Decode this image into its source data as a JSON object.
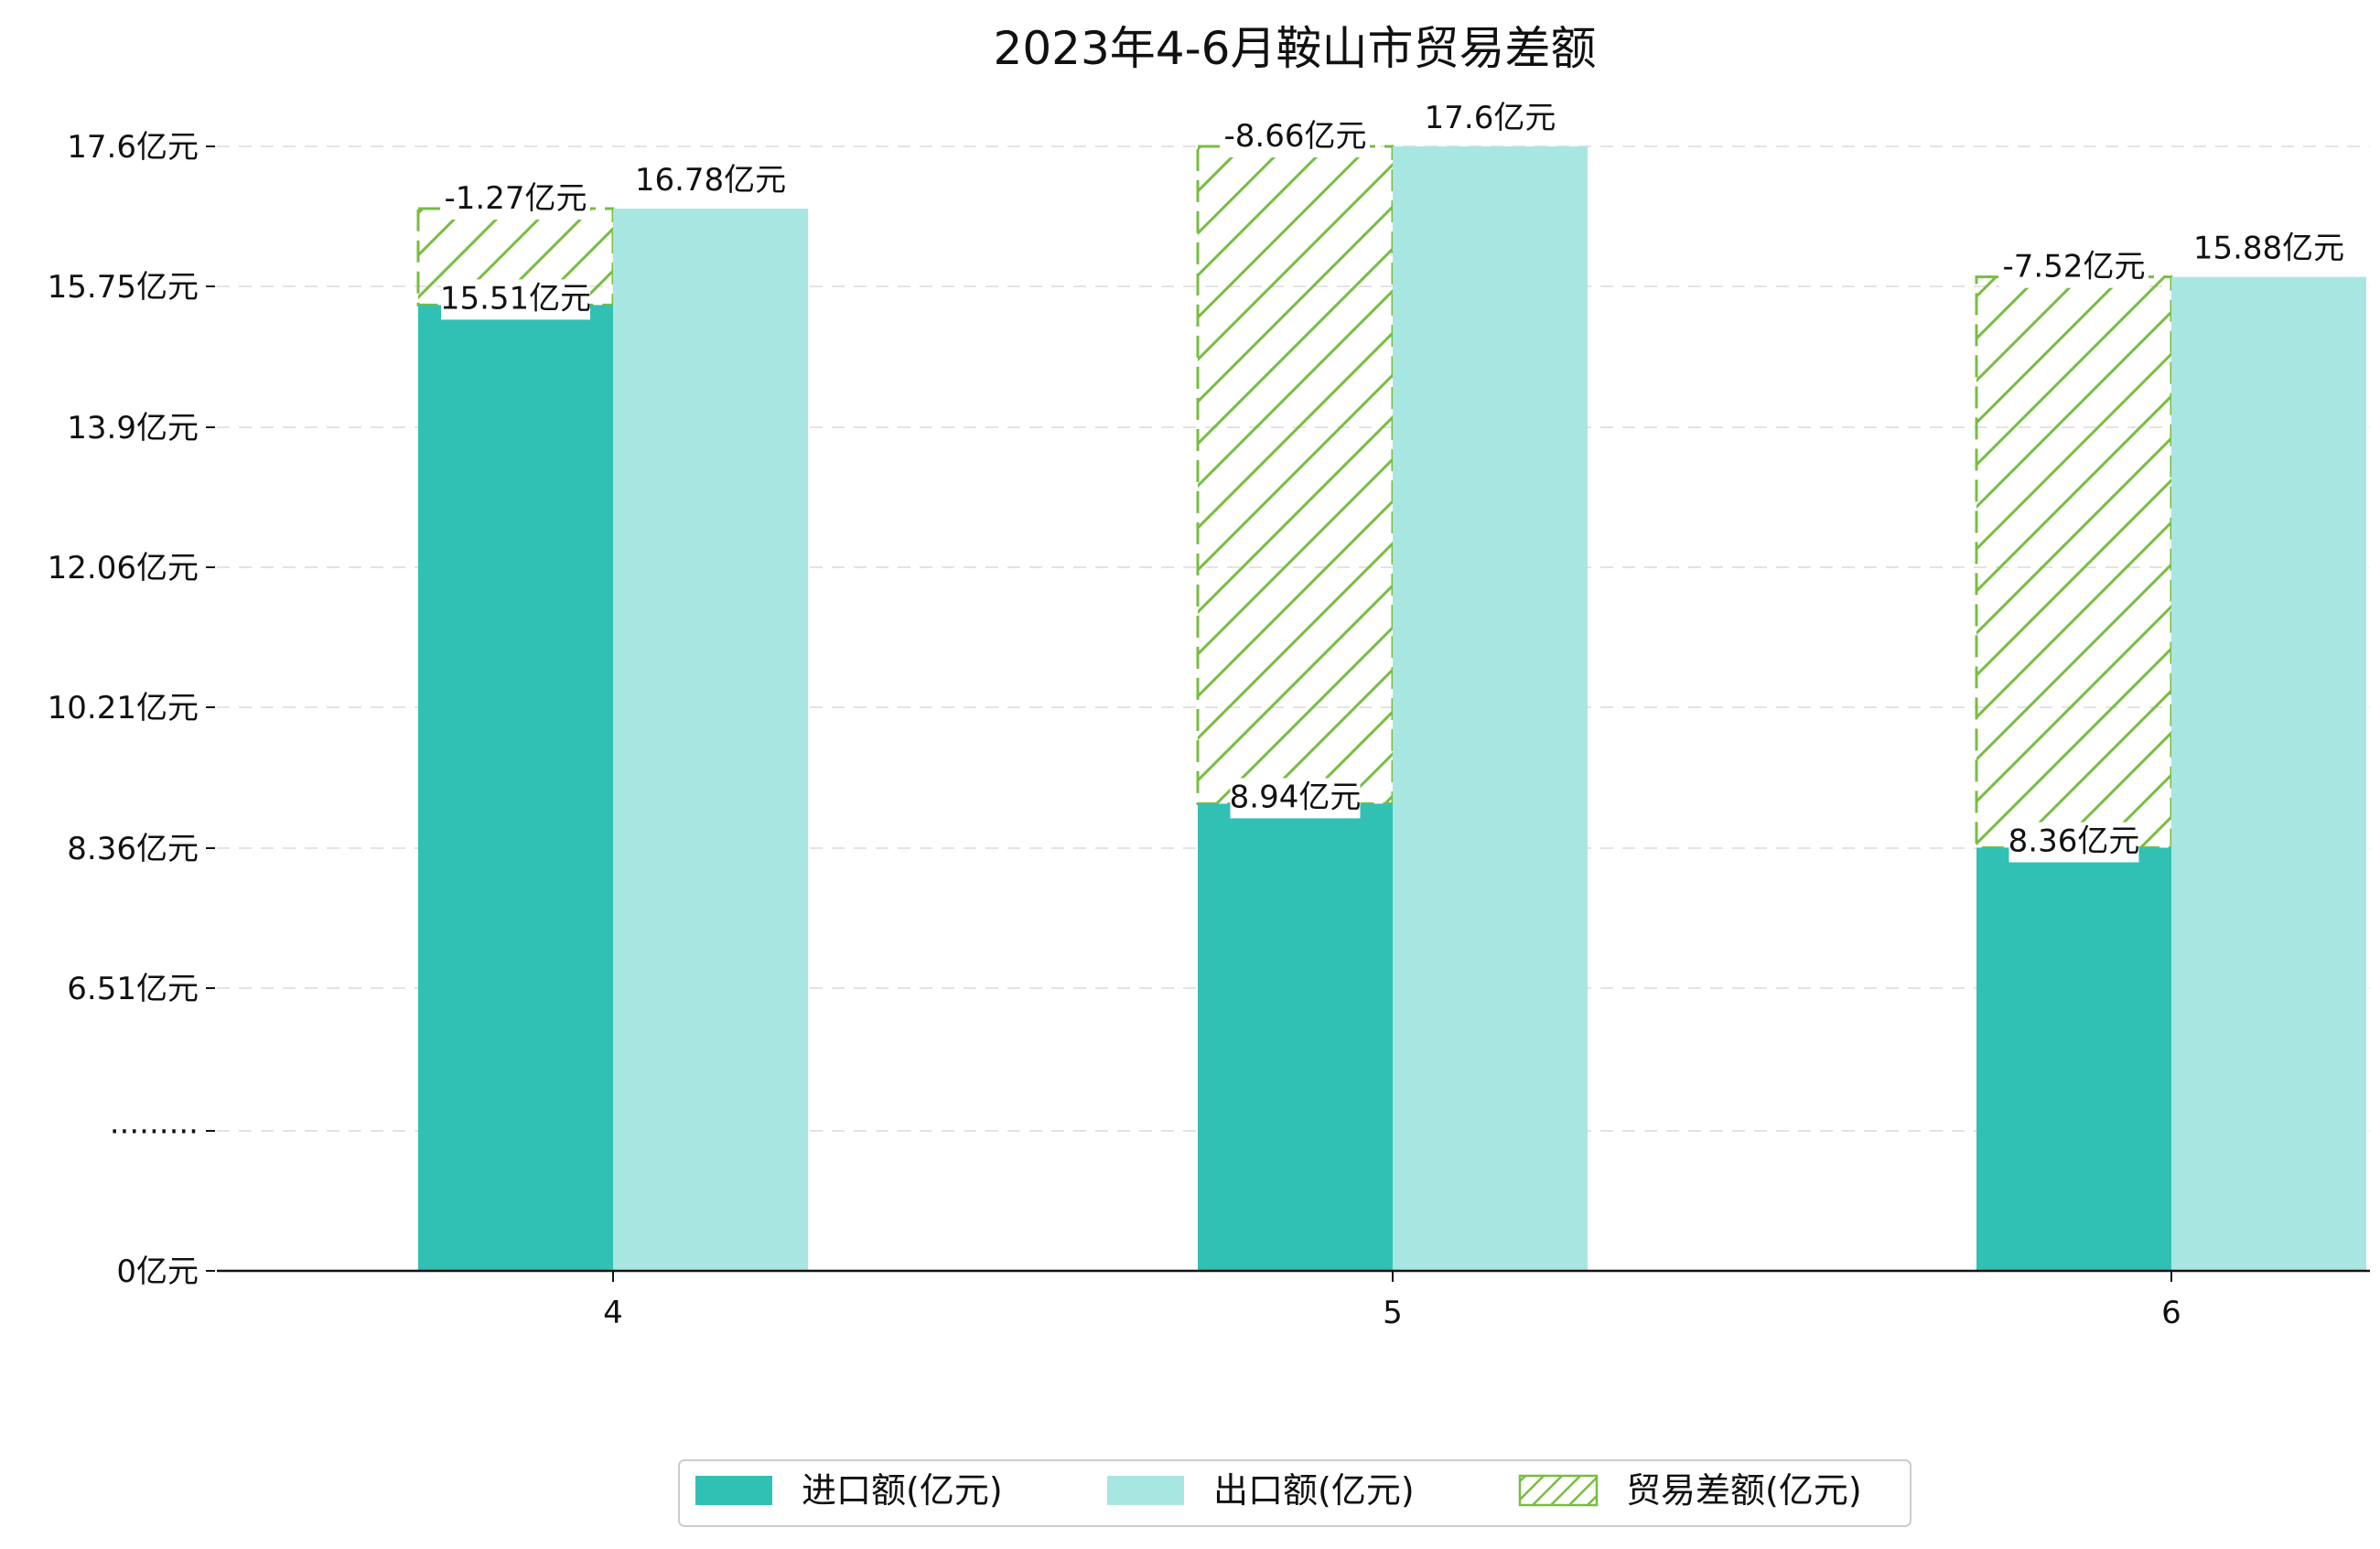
{
  "chart_data": {
    "type": "bar",
    "title": "2023年4-6月鞍山市贸易差额",
    "xlabel": "",
    "ylabel": "",
    "categories": [
      "4",
      "5",
      "6"
    ],
    "series": [
      {
        "name": "进口额(亿元)",
        "values": [
          15.51,
          8.94,
          8.36
        ],
        "value_labels": [
          "15.51亿元",
          "8.94亿元",
          "8.36亿元"
        ],
        "color": "#31c0b4"
      },
      {
        "name": "出口额(亿元)",
        "values": [
          16.78,
          17.6,
          15.88
        ],
        "value_labels": [
          "16.78亿元",
          "17.6亿元",
          "15.88亿元"
        ],
        "color": "#a8e7e1"
      },
      {
        "name": "贸易差额(亿元)",
        "values": [
          -1.27,
          -8.66,
          -7.52
        ],
        "value_labels": [
          "-1.27亿元",
          "-8.66亿元",
          "-7.52亿元"
        ],
        "color": "#78bd42",
        "pattern": "hatch"
      }
    ],
    "y_ticks": [
      {
        "label": "0亿元",
        "value": 0
      },
      {
        "label": "·········",
        "value": null
      },
      {
        "label": "6.51亿元",
        "value": 6.51
      },
      {
        "label": "8.36亿元",
        "value": 8.36
      },
      {
        "label": "10.21亿元",
        "value": 10.21
      },
      {
        "label": "12.06亿元",
        "value": 12.06
      },
      {
        "label": "13.9亿元",
        "value": 13.9
      },
      {
        "label": "15.75亿元",
        "value": 15.75
      },
      {
        "label": "17.6亿元",
        "value": 17.6
      }
    ],
    "y_axis_break": true,
    "ylim": [
      0,
      17.6
    ],
    "grid": true,
    "grid_style": "dashed",
    "legend_position": "bottom-center"
  }
}
